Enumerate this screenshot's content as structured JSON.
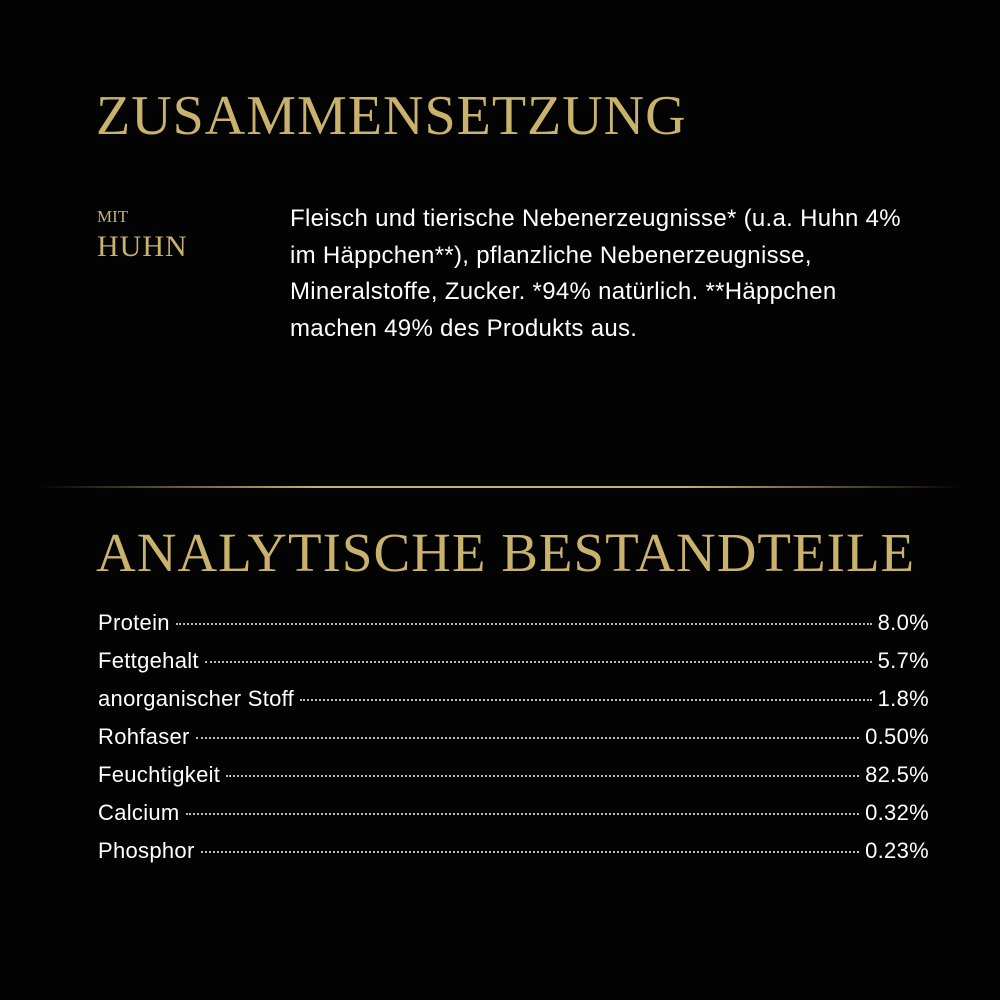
{
  "composition": {
    "title": "ZUSAMMENSETZUNG",
    "variant_prefix": "MIT",
    "variant": "HUHN",
    "text": "Fleisch und tierische Nebenerzeugnisse* (u.a. Huhn 4% im Häppchen**), pflanzliche Nebenerzeugnisse, Mineralstoffe, Zucker. *94% natürlich. **Häppchen machen 49% des Produkts aus."
  },
  "analysis": {
    "title": "ANALYTISCHE BESTANDTEILE",
    "rows": [
      {
        "label": "Protein",
        "value": "8.0%"
      },
      {
        "label": "Fettgehalt",
        "value": "5.7%"
      },
      {
        "label": "anorganischer Stoff",
        "value": "1.8%"
      },
      {
        "label": "Rohfaser",
        "value": "0.50%"
      },
      {
        "label": "Feuchtigkeit",
        "value": "82.5%"
      },
      {
        "label": "Calcium",
        "value": "0.32%"
      },
      {
        "label": "Phosphor",
        "value": "0.23%"
      }
    ]
  },
  "colors": {
    "accent": "#c9b26c",
    "background": "#030303",
    "text": "#ffffff"
  }
}
